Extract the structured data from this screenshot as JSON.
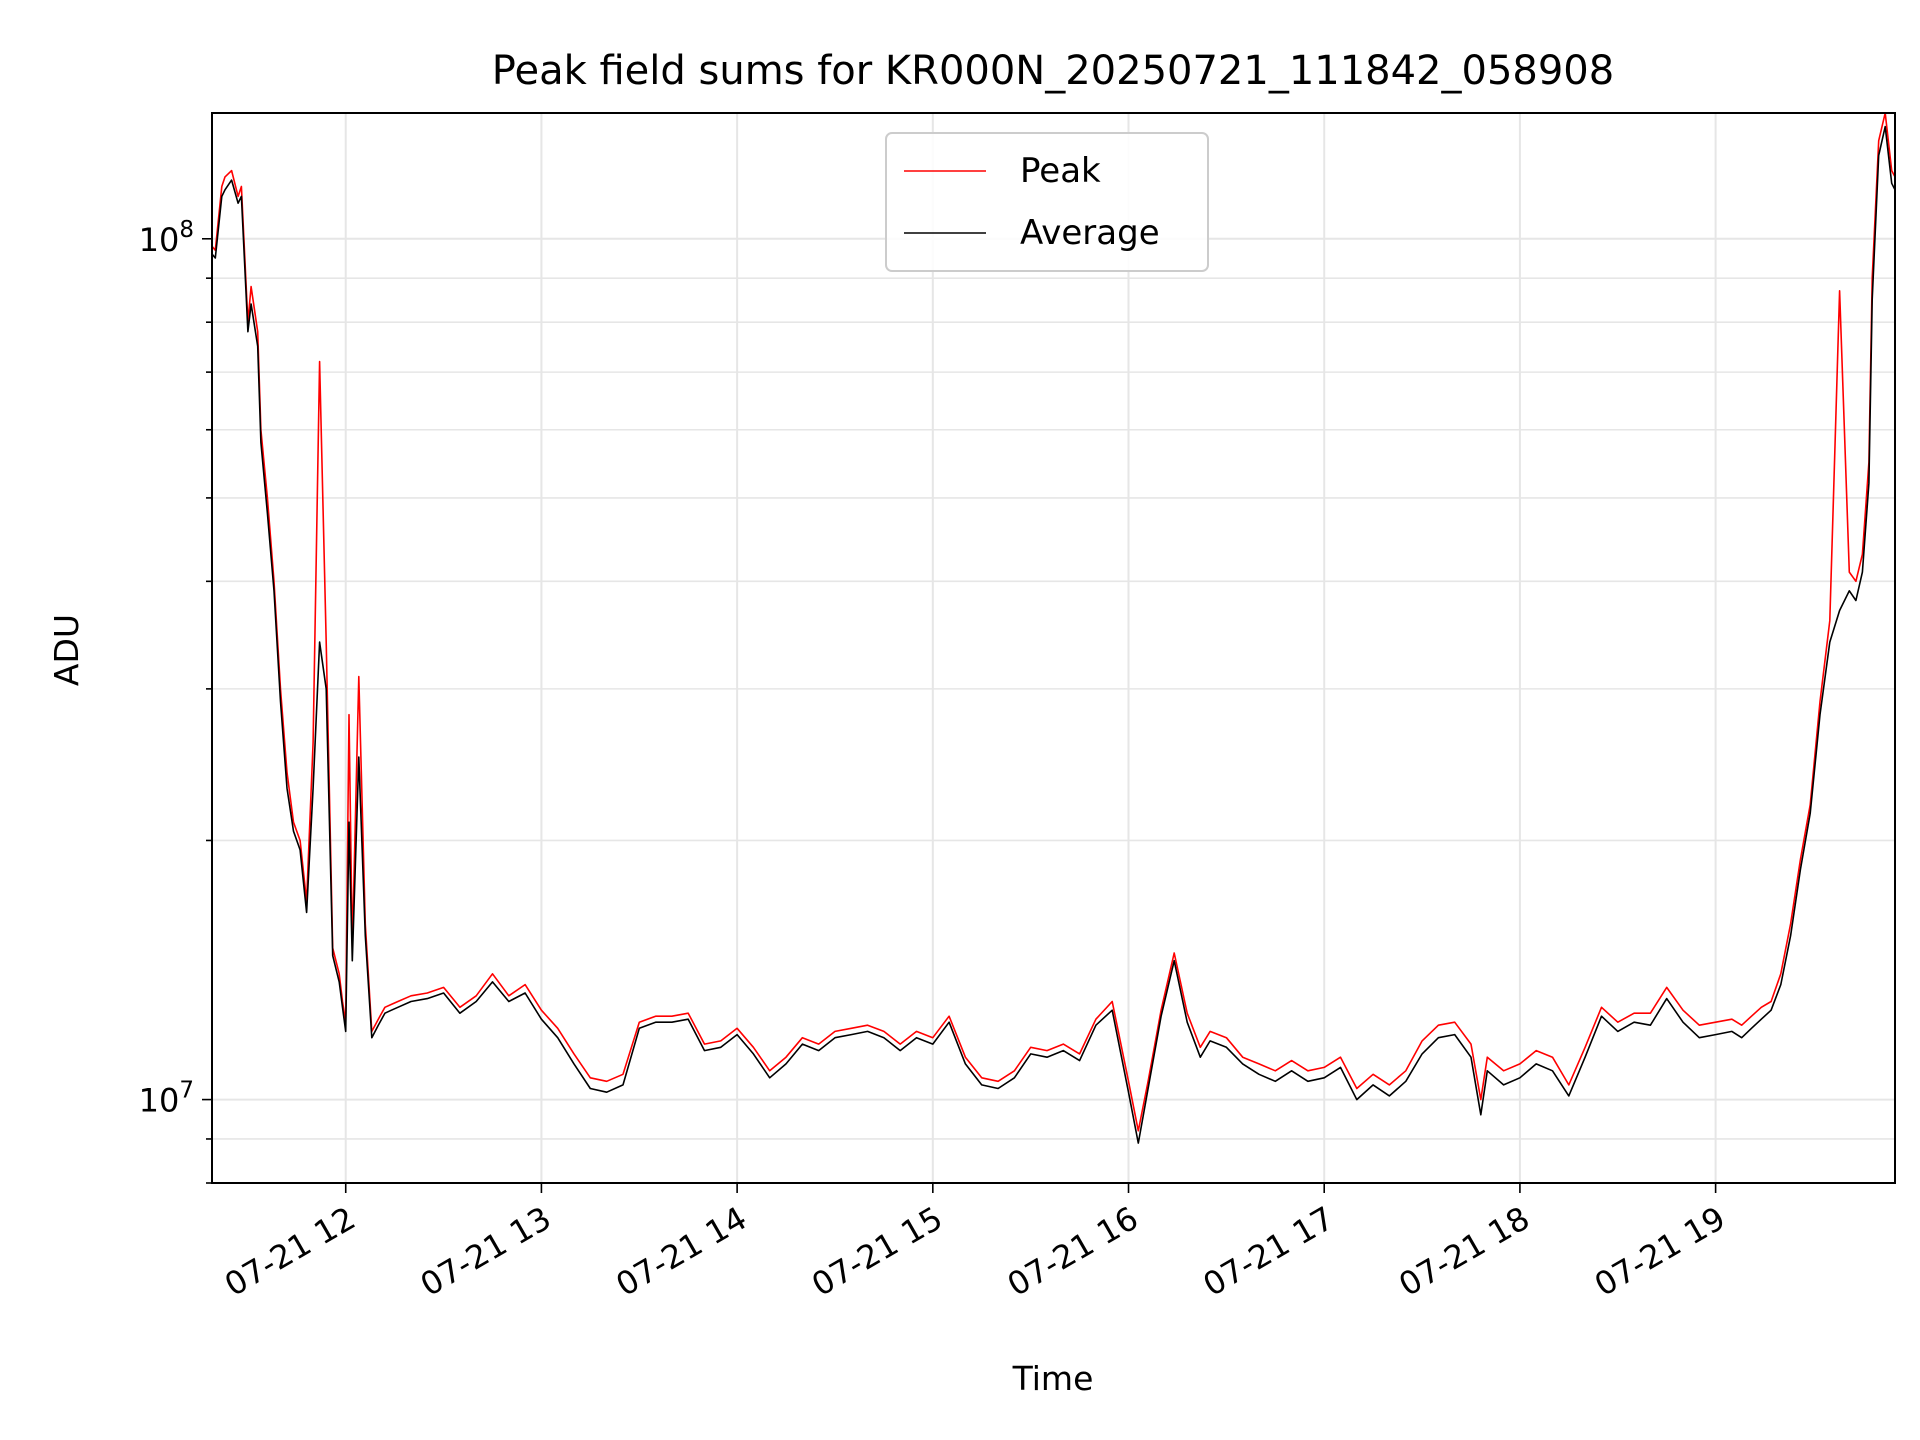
{
  "chart_data": {
    "type": "line",
    "title": "Peak field sums for KR000N_20250721_111842_058908",
    "xlabel": "Time",
    "ylabel": "ADU",
    "yscale": "log",
    "ylim": [
      8000000,
      140000000
    ],
    "xlim": [
      "07-21 11:19",
      "07-21 19:55"
    ],
    "grid": true,
    "legend_position": "top-center",
    "x_ticks": [
      "07-21 12",
      "07-21 13",
      "07-21 14",
      "07-21 15",
      "07-21 16",
      "07-21 17",
      "07-21 18",
      "07-21 19"
    ],
    "y_ticks": [
      {
        "base": "10",
        "exp": "7",
        "value": 10000000
      },
      {
        "base": "10",
        "exp": "8",
        "value": 100000000
      }
    ],
    "x": [
      "11:19",
      "11:20",
      "11:22",
      "11:23",
      "11:25",
      "11:27",
      "11:28",
      "11:30",
      "11:31",
      "11:33",
      "11:34",
      "11:36",
      "11:38",
      "11:40",
      "11:42",
      "11:44",
      "11:46",
      "11:48",
      "11:50",
      "11:52",
      "11:54",
      "11:56",
      "11:58",
      "11:59",
      "12:00",
      "12:01",
      "12:02",
      "12:04",
      "12:06",
      "12:08",
      "12:09",
      "12:10",
      "12:11",
      "12:12",
      "12:14",
      "12:16",
      "12:20",
      "12:25",
      "12:30",
      "12:35",
      "12:40",
      "12:45",
      "12:50",
      "12:55",
      "13:00",
      "13:05",
      "13:10",
      "13:15",
      "13:20",
      "13:25",
      "13:30",
      "13:35",
      "13:40",
      "13:45",
      "13:50",
      "13:55",
      "14:00",
      "14:05",
      "14:10",
      "14:15",
      "14:20",
      "14:25",
      "14:30",
      "14:35",
      "14:40",
      "14:45",
      "14:50",
      "14:55",
      "15:00",
      "15:05",
      "15:10",
      "15:15",
      "15:20",
      "15:25",
      "15:30",
      "15:35",
      "15:40",
      "15:45",
      "15:50",
      "15:55",
      "16:00",
      "16:03",
      "16:06",
      "16:10",
      "16:14",
      "16:18",
      "16:22",
      "16:25",
      "16:30",
      "16:35",
      "16:40",
      "16:45",
      "16:50",
      "16:55",
      "17:00",
      "17:05",
      "17:10",
      "17:15",
      "17:20",
      "17:25",
      "17:30",
      "17:35",
      "17:40",
      "17:45",
      "17:48",
      "17:50",
      "17:55",
      "18:00",
      "18:05",
      "18:10",
      "18:15",
      "18:20",
      "18:25",
      "18:30",
      "18:35",
      "18:40",
      "18:45",
      "18:50",
      "18:55",
      "19:00",
      "19:05",
      "19:08",
      "19:11",
      "19:14",
      "19:17",
      "19:20",
      "19:23",
      "19:26",
      "19:29",
      "19:32",
      "19:35",
      "19:38",
      "19:41",
      "19:43",
      "19:45",
      "19:47",
      "19:48",
      "19:50",
      "19:52",
      "19:54",
      "19:55"
    ],
    "series": [
      {
        "name": "Peak",
        "color": "#ff0000",
        "values": [
          98000000,
          97000000,
          115000000,
          118000000,
          120000000,
          112000000,
          115000000,
          80000000,
          88000000,
          78000000,
          60000000,
          50000000,
          40000000,
          30000000,
          24000000,
          21000000,
          20000000,
          17000000,
          26000000,
          72000000,
          34000000,
          15000000,
          14000000,
          13000000,
          12300000,
          28000000,
          15000000,
          31000000,
          16000000,
          12000000,
          12200000,
          12400000,
          12600000,
          12800000,
          12900000,
          13000000,
          13200000,
          13300000,
          13500000,
          12800000,
          13200000,
          14000000,
          13200000,
          13600000,
          12700000,
          12100000,
          11300000,
          10600000,
          10500000,
          10700000,
          12300000,
          12500000,
          12500000,
          12600000,
          11600000,
          11700000,
          12100000,
          11500000,
          10800000,
          11200000,
          11800000,
          11600000,
          12000000,
          12100000,
          12200000,
          12000000,
          11600000,
          12000000,
          11800000,
          12500000,
          11200000,
          10600000,
          10500000,
          10800000,
          11500000,
          11400000,
          11600000,
          11300000,
          12400000,
          13000000,
          10500000,
          9200000,
          10500000,
          12700000,
          14800000,
          12600000,
          11500000,
          12000000,
          11800000,
          11200000,
          11000000,
          10800000,
          11100000,
          10800000,
          10900000,
          11200000,
          10300000,
          10700000,
          10400000,
          10800000,
          11700000,
          12200000,
          12300000,
          11600000,
          10000000,
          11200000,
          10800000,
          11000000,
          11400000,
          11200000,
          10400000,
          11500000,
          12800000,
          12300000,
          12600000,
          12600000,
          13500000,
          12700000,
          12200000,
          12300000,
          12400000,
          12200000,
          12500000,
          12800000,
          13000000,
          14000000,
          16000000,
          19000000,
          22000000,
          29000000,
          36000000,
          87000000,
          41000000,
          40000000,
          43000000,
          55000000,
          90000000,
          130000000,
          140000000,
          120000000,
          118000000
        ]
      },
      {
        "name": "Average",
        "color": "#000000",
        "values": [
          96000000,
          95000000,
          112000000,
          114000000,
          117000000,
          110000000,
          112000000,
          78000000,
          84000000,
          75000000,
          58000000,
          48000000,
          39000000,
          29000000,
          23000000,
          20500000,
          19500000,
          16500000,
          23000000,
          34000000,
          30000000,
          14700000,
          13700000,
          12800000,
          12000000,
          21000000,
          14500000,
          25000000,
          15500000,
          11800000,
          12000000,
          12200000,
          12400000,
          12600000,
          12700000,
          12800000,
          13000000,
          13100000,
          13300000,
          12600000,
          13000000,
          13700000,
          13000000,
          13300000,
          12400000,
          11800000,
          11000000,
          10300000,
          10200000,
          10400000,
          12100000,
          12300000,
          12300000,
          12400000,
          11400000,
          11500000,
          11900000,
          11300000,
          10600000,
          11000000,
          11600000,
          11400000,
          11800000,
          11900000,
          12000000,
          11800000,
          11400000,
          11800000,
          11600000,
          12300000,
          11000000,
          10400000,
          10300000,
          10600000,
          11300000,
          11200000,
          11400000,
          11100000,
          12200000,
          12700000,
          10200000,
          8900000,
          10300000,
          12500000,
          14500000,
          12300000,
          11200000,
          11700000,
          11500000,
          11000000,
          10700000,
          10500000,
          10800000,
          10500000,
          10600000,
          10900000,
          10000000,
          10400000,
          10100000,
          10500000,
          11300000,
          11800000,
          11900000,
          11200000,
          9600000,
          10800000,
          10400000,
          10600000,
          11000000,
          10800000,
          10100000,
          11200000,
          12500000,
          12000000,
          12300000,
          12200000,
          13100000,
          12300000,
          11800000,
          11900000,
          12000000,
          11800000,
          12100000,
          12400000,
          12700000,
          13600000,
          15500000,
          18500000,
          21500000,
          28000000,
          34000000,
          37000000,
          39000000,
          38000000,
          41000000,
          52000000,
          85000000,
          125000000,
          135000000,
          116000000,
          114000000
        ]
      }
    ]
  }
}
